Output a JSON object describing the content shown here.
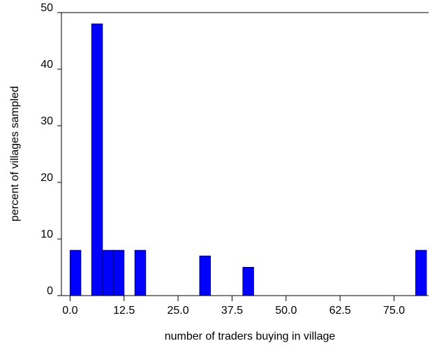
{
  "chart_data": {
    "type": "histogram",
    "xlabel": "number of traders buying in village",
    "ylabel": "percent of villages sampled",
    "bins": [
      0,
      2.5,
      5,
      7.5,
      10,
      12.5,
      15,
      17.5,
      20,
      22.5,
      25,
      27.5,
      30,
      32.5,
      35,
      37.5,
      40,
      42.5,
      45,
      47.5,
      50,
      52.5,
      55,
      57.5,
      60,
      62.5,
      65,
      67.5,
      70,
      72.5,
      75,
      77.5,
      80,
      82.5
    ],
    "values": [
      8,
      0,
      48,
      8,
      8,
      0,
      8,
      0,
      0,
      0,
      0,
      0,
      7,
      0,
      0,
      0,
      5,
      0,
      0,
      0,
      0,
      0,
      0,
      0,
      0,
      0,
      0,
      0,
      0,
      0,
      0,
      0,
      8
    ],
    "color": "#0000ff",
    "xlim": [
      -2,
      83
    ],
    "xticks": [
      {
        "value": 0,
        "label": "0.0"
      },
      {
        "value": 12.5,
        "label": "12.5"
      },
      {
        "value": 25,
        "label": "25.0"
      },
      {
        "value": 37.5,
        "label": "37.5"
      },
      {
        "value": 50,
        "label": "50.0"
      },
      {
        "value": 62.5,
        "label": "62.5"
      },
      {
        "value": 75,
        "label": "75.0"
      }
    ],
    "ylim": [
      0,
      50
    ],
    "yticks": [
      0,
      10,
      20,
      30,
      40,
      50
    ],
    "grid": false
  }
}
